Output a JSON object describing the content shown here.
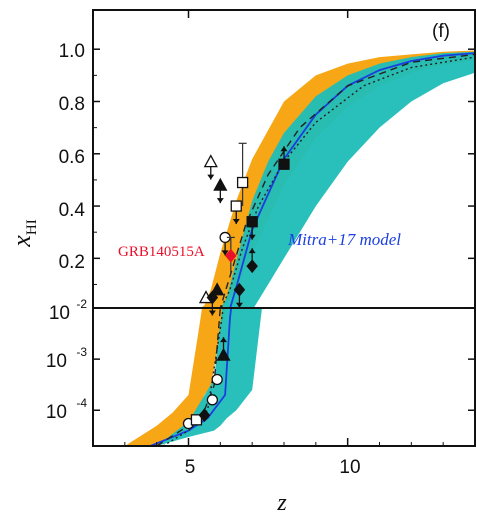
{
  "chart_data": {
    "type": "scatter",
    "panel_label": "(f)",
    "xlabel": "z",
    "ylabel": "x",
    "ylabel_sub": "HI",
    "x_ticks": [
      "5",
      "10"
    ],
    "x_tick_values": [
      5,
      10
    ],
    "xlim": [
      2,
      14
    ],
    "upper_panel": {
      "scale": "linear",
      "ylim": [
        0.01,
        1.15
      ],
      "y_ticks": [
        "10",
        "0.2",
        "0.4",
        "0.6",
        "0.8",
        "1.0"
      ],
      "y_tick_values": [
        0.01,
        0.2,
        0.4,
        0.6,
        0.8,
        1.0
      ],
      "first_tick_exponent": "-2"
    },
    "lower_panel": {
      "scale": "log",
      "ylim": [
        2e-05,
        0.01
      ],
      "y_ticks": [
        "10",
        "10"
      ],
      "y_tick_values": [
        0.001,
        0.0001
      ],
      "y_tick_exponents": [
        "-3",
        "-4"
      ]
    },
    "annotations": [
      {
        "text": "GRB140515A",
        "color": "#e8102a"
      },
      {
        "text": "Mitra+17 model",
        "color": "#1a3fe0"
      }
    ],
    "model_band_orange": {
      "color": "#f7a20a",
      "x": [
        3.0,
        4.0,
        4.5,
        5.0,
        5.3,
        5.5,
        5.7,
        6.0,
        6.5,
        7.0,
        8.0,
        9.0,
        10.0,
        11.0,
        12.0,
        13.0,
        14.0
      ],
      "upper": [
        2e-05,
        5e-05,
        9e-05,
        0.0002,
        0.003,
        0.02,
        0.08,
        0.22,
        0.42,
        0.58,
        0.8,
        0.9,
        0.945,
        0.97,
        0.98,
        0.99,
        0.995
      ],
      "lower": [
        2e-05,
        2e-05,
        3e-05,
        5e-05,
        0.0001,
        0.0002,
        0.0003,
        0.003,
        0.08,
        0.22,
        0.48,
        0.66,
        0.78,
        0.86,
        0.91,
        0.94,
        0.96
      ]
    },
    "model_band_teal": {
      "color": "#1dbdb8",
      "x": [
        4.0,
        5.0,
        5.8,
        6.0,
        6.2,
        6.5,
        7.0,
        7.5,
        8.0,
        9.0,
        10.0,
        11.0,
        12.0,
        13.0,
        14.0
      ],
      "upper": [
        2e-05,
        6e-05,
        0.0004,
        0.005,
        0.05,
        0.19,
        0.42,
        0.57,
        0.68,
        0.82,
        0.9,
        0.945,
        0.97,
        0.985,
        0.99
      ],
      "lower": [
        2e-05,
        3e-05,
        4e-05,
        5e-05,
        7e-05,
        0.0001,
        0.00025,
        0.1,
        0.2,
        0.4,
        0.57,
        0.7,
        0.8,
        0.87,
        0.91
      ]
    },
    "series": [
      {
        "color": "#1a3fe0",
        "style": "solid",
        "x": [
          3.8,
          5.0,
          5.6,
          6.0,
          6.15,
          6.3,
          6.5,
          7.0,
          8.0,
          9.0,
          10.0,
          11.0,
          12.0,
          13.0,
          14.0
        ],
        "y": [
          2e-05,
          4e-05,
          7e-05,
          0.00015,
          0.0002,
          0.006,
          0.09,
          0.31,
          0.58,
          0.75,
          0.86,
          0.92,
          0.955,
          0.975,
          0.985
        ]
      },
      {
        "color": "#222222",
        "style": "dashed",
        "x": [
          4.0,
          5.0,
          5.5,
          5.8,
          6.0,
          6.3,
          6.8,
          7.5,
          8.5,
          10.0,
          12.0,
          14.0
        ],
        "y": [
          2e-05,
          5e-05,
          0.0001,
          0.0003,
          0.01,
          0.13,
          0.33,
          0.52,
          0.7,
          0.86,
          0.95,
          0.98
        ]
      },
      {
        "color": "#222222",
        "style": "dotted",
        "x": [
          4.2,
          5.0,
          5.6,
          6.0,
          6.3,
          6.7,
          7.2,
          8.0,
          9.0,
          10.5,
          12.0,
          14.0
        ],
        "y": [
          2e-05,
          4e-05,
          0.0001,
          0.004,
          0.08,
          0.24,
          0.4,
          0.57,
          0.72,
          0.86,
          0.93,
          0.97
        ]
      }
    ],
    "data_points": [
      {
        "x": 5.0,
        "y": 5.5e-05,
        "marker": "circle-open",
        "arrow": ""
      },
      {
        "x": 5.25,
        "y": 6.5e-05,
        "marker": "square-open",
        "arrow": ""
      },
      {
        "x": 5.5,
        "y": 8e-05,
        "marker": "diamond",
        "arrow": ""
      },
      {
        "x": 5.75,
        "y": 0.00016,
        "marker": "circle-open",
        "arrow": ""
      },
      {
        "x": 5.9,
        "y": 0.0004,
        "marker": "circle-open",
        "arrow": ""
      },
      {
        "x": 6.1,
        "y": 0.0012,
        "marker": "triangle",
        "arrow": "up"
      },
      {
        "x": 5.55,
        "y": 0.05,
        "marker": "triangle-open",
        "arrow": ""
      },
      {
        "x": 5.75,
        "y": 0.05,
        "marker": "diamond",
        "arrow": "down"
      },
      {
        "x": 5.9,
        "y": 0.08,
        "marker": "triangle",
        "arrow": ""
      },
      {
        "x": 5.7,
        "y": 0.57,
        "marker": "triangle-open",
        "arrow": "down"
      },
      {
        "x": 6.0,
        "y": 0.48,
        "marker": "triangle",
        "arrow": "down"
      },
      {
        "x": 6.15,
        "y": 0.28,
        "marker": "circle-open",
        "arrow": "down"
      },
      {
        "x": 6.5,
        "y": 0.4,
        "marker": "square-open",
        "arrow": "down"
      },
      {
        "x": 6.7,
        "y": 0.49,
        "marker": "square-open",
        "arrow": "",
        "err": [
          0.4,
          0.64
        ]
      },
      {
        "x": 6.33,
        "y": 0.21,
        "marker": "diamond-red",
        "arrow": "",
        "err": [
          0.14,
          0.28
        ]
      },
      {
        "x": 6.6,
        "y": 0.08,
        "marker": "diamond",
        "arrow": "down"
      },
      {
        "x": 7.0,
        "y": 0.17,
        "marker": "diamond",
        "arrow": "up"
      },
      {
        "x": 7.0,
        "y": 0.34,
        "marker": "square",
        "arrow": "down"
      },
      {
        "x": 8.0,
        "y": 0.56,
        "marker": "square",
        "arrow": "up"
      }
    ]
  }
}
